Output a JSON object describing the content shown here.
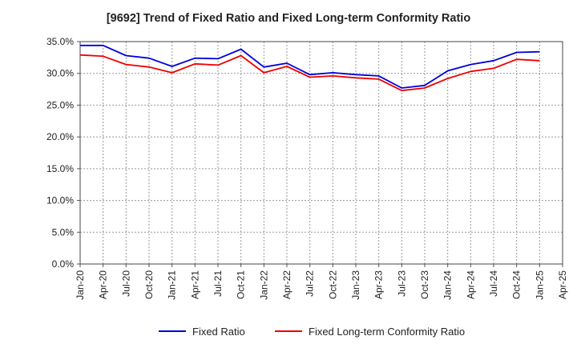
{
  "chart_data": {
    "type": "line",
    "title": "[9692]  Trend of Fixed Ratio and Fixed Long-term Conformity Ratio",
    "xlabel": "",
    "ylabel": "",
    "x_tick_labels": [
      "Jan-20",
      "Apr-20",
      "Jul-20",
      "Oct-20",
      "Jan-21",
      "Apr-21",
      "Jul-21",
      "Oct-21",
      "Jan-22",
      "Apr-22",
      "Jul-22",
      "Oct-22",
      "Jan-23",
      "Apr-23",
      "Jul-23",
      "Oct-23",
      "Jan-24",
      "Apr-24",
      "Jul-24",
      "Oct-24",
      "Jan-25",
      "Apr-25"
    ],
    "y_tick_labels": [
      "0.0%",
      "5.0%",
      "10.0%",
      "15.0%",
      "20.0%",
      "25.0%",
      "30.0%",
      "35.0%"
    ],
    "ylim": [
      0,
      35
    ],
    "grid": true,
    "legend_position": "bottom",
    "series": [
      {
        "name": "Fixed Ratio",
        "color": "#0000dd",
        "values": [
          34.4,
          34.4,
          32.8,
          32.4,
          31.1,
          32.4,
          32.3,
          33.8,
          31.0,
          31.6,
          29.8,
          30.1,
          29.8,
          29.6,
          27.7,
          28.1,
          30.4,
          31.4,
          32.0,
          33.3,
          33.4
        ]
      },
      {
        "name": "Fixed Long-term Conformity Ratio",
        "color": "#ee0000",
        "values": [
          32.9,
          32.7,
          31.4,
          31.0,
          30.1,
          31.5,
          31.3,
          32.8,
          30.1,
          31.1,
          29.4,
          29.6,
          29.3,
          29.1,
          27.3,
          27.7,
          29.2,
          30.3,
          30.8,
          32.2,
          32.0
        ]
      }
    ]
  }
}
